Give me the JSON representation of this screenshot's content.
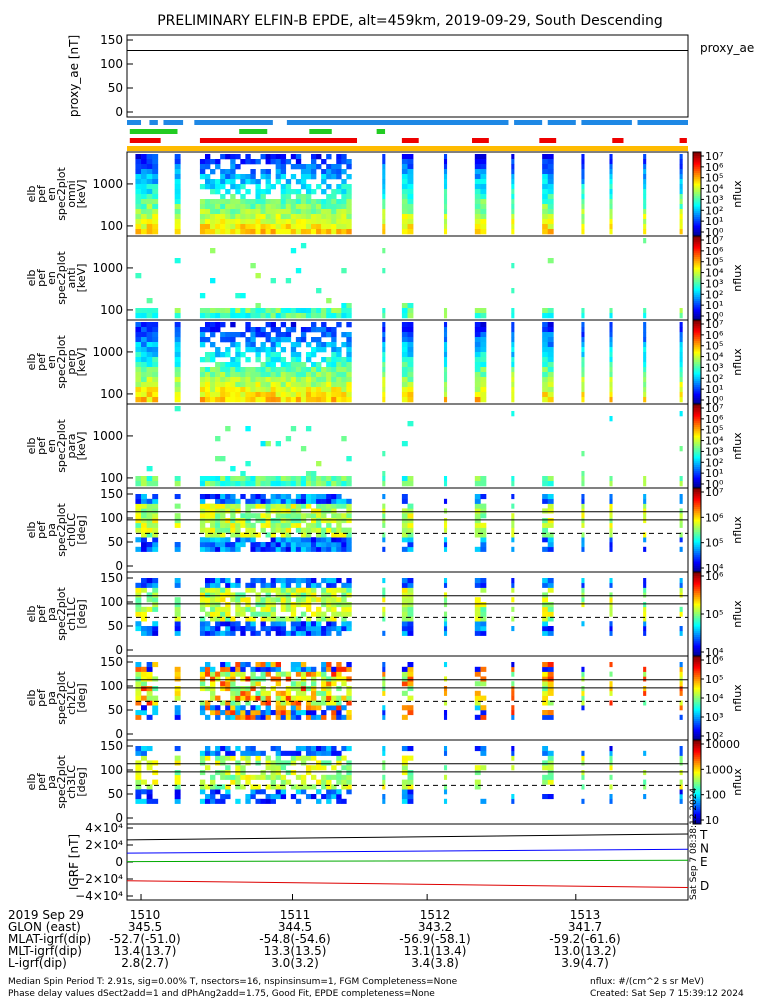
{
  "title": "PRELIMINARY ELFIN-B EPDE, alt=459km, 2019-09-29, South Descending",
  "ae_panel": {
    "ylabel": "proxy_ae [nT]",
    "legend": "proxy_ae",
    "yticks": [
      "150",
      "100",
      "50",
      "0"
    ],
    "value": 128
  },
  "spectra_panels": [
    {
      "ylabel": [
        "elb",
        "pef",
        "en",
        "spec2plot",
        "omni",
        "[keV]"
      ],
      "yticks": [
        "1000",
        "100"
      ],
      "cbar_label": "nflux"
    },
    {
      "ylabel": [
        "elb",
        "pef",
        "en",
        "spec2plot",
        "anti",
        "[keV]"
      ],
      "yticks": [
        "1000",
        "100"
      ],
      "cbar_label": "nflux"
    },
    {
      "ylabel": [
        "elb",
        "pef",
        "en",
        "spec2plot",
        "perp",
        "[keV]"
      ],
      "yticks": [
        "1000",
        "100"
      ],
      "cbar_label": "nflux"
    },
    {
      "ylabel": [
        "elb",
        "pef",
        "en",
        "spec2plot",
        "para",
        "[keV]"
      ],
      "yticks": [
        "1000",
        "100"
      ],
      "cbar_label": "nflux"
    }
  ],
  "pa_panels": [
    {
      "ylabel": [
        "elb",
        "pef",
        "pa",
        "spec2plot",
        "ch0LC",
        "[deg]"
      ],
      "yticks": [
        "150",
        "100",
        "50",
        "0"
      ],
      "cbar_label": "nflux"
    },
    {
      "ylabel": [
        "elb",
        "pef",
        "pa",
        "spec2plot",
        "ch1LC",
        "[deg]"
      ],
      "yticks": [
        "150",
        "100",
        "50",
        "0"
      ],
      "cbar_label": "nflux"
    },
    {
      "ylabel": [
        "elb",
        "pef",
        "pa",
        "spec2plot",
        "ch2LC",
        "[deg]"
      ],
      "yticks": [
        "150",
        "100",
        "50",
        "0"
      ],
      "cbar_label": "nflux"
    },
    {
      "ylabel": [
        "elb",
        "pef",
        "pa",
        "spec2plot",
        "ch3LC",
        "[deg]"
      ],
      "yticks": [
        "150",
        "100",
        "50",
        "0"
      ],
      "cbar_label": "nflux"
    }
  ],
  "igrf_panel": {
    "ylabel": "IGRF [nT]",
    "yticks": [
      "4×10⁴",
      "2×10⁴",
      "0",
      "−2×10⁴",
      "−4×10⁴"
    ],
    "legend": [
      "T",
      "N",
      "E",
      "D"
    ],
    "colors": {
      "T": "#000000",
      "N": "#0000ff",
      "E": "#00aa00",
      "D": "#dd0000"
    },
    "stamp": "Sat Sep  7 08:38:12 2024"
  },
  "footer": {
    "rows": [
      [
        "2019 Sep 29",
        "1510",
        "1511",
        "1512",
        "1513"
      ],
      [
        "GLON (east)",
        "345.5",
        "344.5",
        "343.2",
        "341.7"
      ],
      [
        "MLAT-igrf(dip)",
        "-52.7(-51.0)",
        "-54.8(-54.6)",
        "-56.9(-58.1)",
        "-59.2(-61.6)"
      ],
      [
        "MLT-igrf(dip)",
        "13.4(13.7)",
        "13.3(13.5)",
        "13.1(13.4)",
        "13.0(13.2)"
      ],
      [
        "L-igrf(dip)",
        "2.8(2.7)",
        "3.0(3.2)",
        "3.4(3.8)",
        "3.9(4.7)"
      ]
    ],
    "note1": "Median Spin Period T: 2.91s, sig=0.00% T, nsectors=16, nspinsinsum=1, FGM Completeness=None",
    "note2": "Phase delay values dSect2add=1 and dPhAng2add=1.75, Good Fit, EPDE completeness=None",
    "units": "nflux: #/(cm^2 s sr MeV)",
    "created": "Created: Sat Sep  7 15:39:12 2024"
  },
  "chart_data": {
    "type": "heatmap",
    "title": "PRELIMINARY ELFIN-B EPDE, alt=459km, 2019-09-29, South Descending",
    "time_ticks": [
      "1510",
      "1511",
      "1512",
      "1513"
    ],
    "proxy_ae_nT": 128,
    "energy_ticks_keV": [
      100,
      1000
    ],
    "pitch_angle_ticks_deg": [
      0,
      50,
      100,
      150
    ],
    "igrf_range_nT": [
      -40000,
      40000
    ],
    "colorbars": [
      {
        "panel": "omni",
        "ticks": [
          "10⁷",
          "10⁶",
          "10⁵",
          "10⁴",
          "10³",
          "10²",
          "10¹",
          "10⁰"
        ]
      },
      {
        "panel": "anti",
        "ticks": [
          "10⁷",
          "10⁶",
          "10⁵",
          "10⁴",
          "10³",
          "10²",
          "10¹",
          "10⁰"
        ]
      },
      {
        "panel": "perp",
        "ticks": [
          "10⁷",
          "10⁶",
          "10⁵",
          "10⁴",
          "10³",
          "10²",
          "10¹",
          "10⁰"
        ]
      },
      {
        "panel": "para",
        "ticks": [
          "10⁷",
          "10⁶",
          "10⁵",
          "10⁴",
          "10³",
          "10²",
          "10¹",
          "10⁰"
        ]
      },
      {
        "panel": "ch0LC",
        "ticks": [
          "10⁷",
          "10⁶",
          "10⁵",
          "10⁴"
        ]
      },
      {
        "panel": "ch1LC",
        "ticks": [
          "10⁶",
          "10⁵",
          "10⁴"
        ]
      },
      {
        "panel": "ch2LC",
        "ticks": [
          "10⁶",
          "10⁵",
          "10⁴",
          "10³",
          "10²"
        ]
      },
      {
        "panel": "ch3LC",
        "ticks": [
          "10000",
          "1000",
          "100",
          "10"
        ]
      }
    ]
  }
}
